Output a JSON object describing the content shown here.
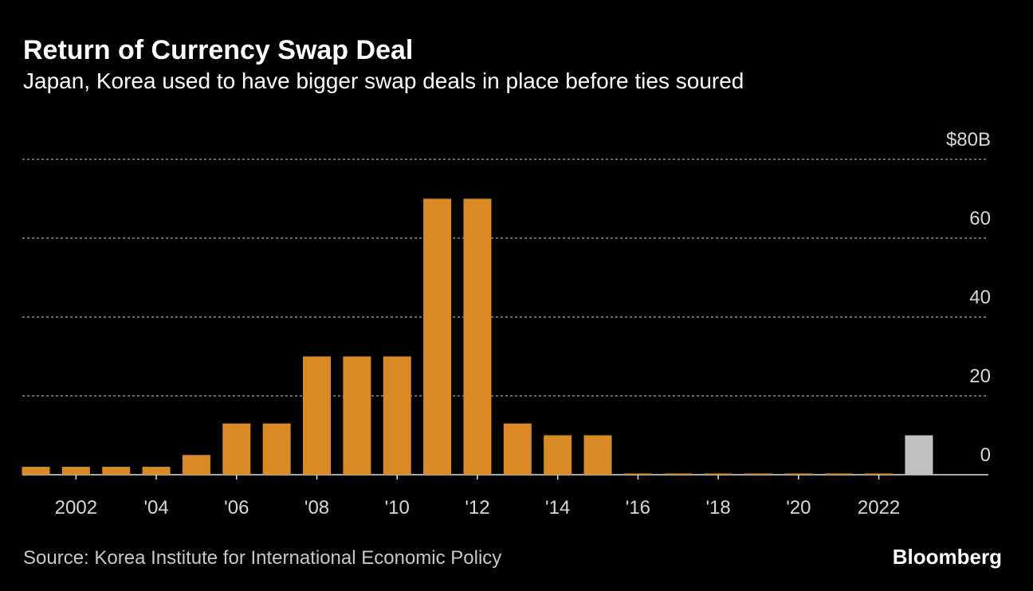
{
  "chart_data": {
    "type": "bar",
    "title": "Return of Currency Swap Deal",
    "subtitle": "Japan, Korea used to have bigger swap deals in place before ties soured",
    "source": "Source: Korea Institute for International Economic Policy",
    "brand": "Bloomberg",
    "categories": [
      null,
      "2002",
      null,
      "'04",
      null,
      "'06",
      null,
      "'08",
      null,
      "'10",
      null,
      "'12",
      null,
      "'14",
      null,
      "'16",
      null,
      "'18",
      null,
      "'20",
      null,
      "2022",
      null
    ],
    "values": [
      2,
      2,
      2,
      2,
      5,
      13,
      13,
      30,
      30,
      30,
      70,
      70,
      13,
      10,
      10,
      0,
      0,
      0,
      0,
      0,
      0,
      0,
      10
    ],
    "colors": [
      "#d98a26",
      "#d98a26",
      "#d98a26",
      "#d98a26",
      "#d98a26",
      "#d98a26",
      "#d98a26",
      "#d98a26",
      "#d98a26",
      "#d98a26",
      "#d98a26",
      "#d98a26",
      "#d98a26",
      "#d98a26",
      "#d98a26",
      "#d98a26",
      "#d98a26",
      "#d98a26",
      "#d98a26",
      "#d98a26",
      "#d98a26",
      "#d98a26",
      "#c0c0c0"
    ],
    "ylim": [
      0,
      80
    ],
    "yticks": [
      0,
      20,
      40,
      60,
      {
        "value": 80,
        "label": "$80B"
      }
    ],
    "grid": true
  }
}
